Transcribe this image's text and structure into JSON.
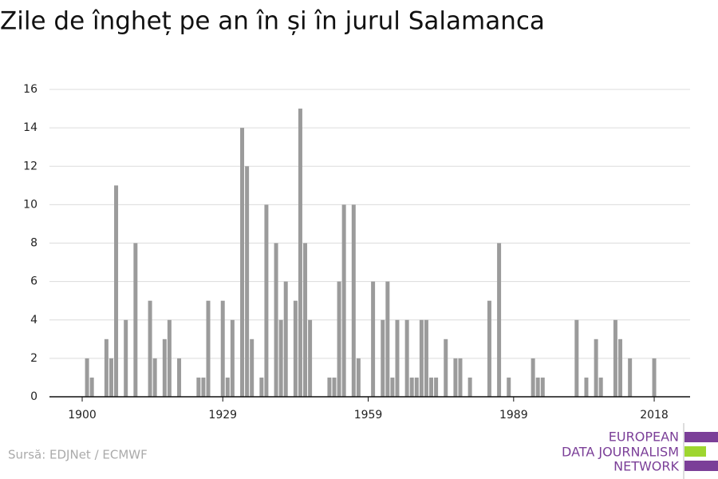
{
  "chart_data": {
    "type": "bar",
    "title": "Zile de îngheț pe an în și în jurul Salamanca",
    "source": "Sursă: EDJNet / ECMWF",
    "logo": [
      "EUROPEAN",
      "DATA JOURNALISM",
      "NETWORK"
    ],
    "x": [
      1900,
      1901,
      1902,
      1903,
      1904,
      1905,
      1906,
      1907,
      1908,
      1909,
      1910,
      1911,
      1912,
      1913,
      1914,
      1915,
      1916,
      1917,
      1918,
      1919,
      1920,
      1921,
      1922,
      1923,
      1924,
      1925,
      1926,
      1927,
      1928,
      1929,
      1930,
      1931,
      1932,
      1933,
      1934,
      1935,
      1936,
      1937,
      1938,
      1939,
      1940,
      1941,
      1942,
      1943,
      1944,
      1945,
      1946,
      1947,
      1948,
      1949,
      1950,
      1951,
      1952,
      1953,
      1954,
      1955,
      1956,
      1957,
      1958,
      1959,
      1960,
      1961,
      1962,
      1963,
      1964,
      1965,
      1966,
      1967,
      1968,
      1969,
      1970,
      1971,
      1972,
      1973,
      1974,
      1975,
      1976,
      1977,
      1978,
      1979,
      1980,
      1981,
      1982,
      1983,
      1984,
      1985,
      1986,
      1987,
      1988,
      1989,
      1990,
      1991,
      1992,
      1993,
      1994,
      1995,
      1996,
      1997,
      1998,
      1999,
      2000,
      2001,
      2002,
      2003,
      2004,
      2005,
      2006,
      2007,
      2008,
      2009,
      2010,
      2011,
      2012,
      2013,
      2014,
      2015,
      2016,
      2017,
      2018
    ],
    "values": [
      0,
      2,
      1,
      0,
      0,
      3,
      2,
      11,
      0,
      4,
      0,
      8,
      0,
      0,
      5,
      2,
      0,
      3,
      4,
      0,
      2,
      0,
      0,
      0,
      1,
      1,
      5,
      0,
      0,
      5,
      1,
      4,
      0,
      14,
      12,
      3,
      0,
      1,
      10,
      0,
      8,
      4,
      6,
      0,
      5,
      15,
      8,
      4,
      0,
      0,
      0,
      1,
      1,
      6,
      10,
      0,
      10,
      2,
      0,
      0,
      6,
      0,
      4,
      6,
      1,
      4,
      0,
      4,
      1,
      1,
      4,
      4,
      1,
      1,
      0,
      3,
      0,
      2,
      2,
      0,
      1,
      0,
      0,
      0,
      5,
      0,
      8,
      0,
      1,
      0,
      0,
      0,
      0,
      2,
      1,
      1,
      0,
      0,
      0,
      0,
      0,
      0,
      4,
      0,
      1,
      0,
      3,
      1,
      0,
      0,
      4,
      3,
      0,
      2,
      0,
      0,
      0,
      0,
      2
    ],
    "color": "#9b9b9b",
    "xlim": [
      1893.25,
      2025.4
    ],
    "xticks": [
      1900,
      1929,
      1959,
      1989,
      2018
    ],
    "ylim": [
      0,
      16
    ],
    "yticks": [
      0,
      2,
      4,
      6,
      8,
      10,
      12,
      14,
      16
    ],
    "grid": true
  }
}
